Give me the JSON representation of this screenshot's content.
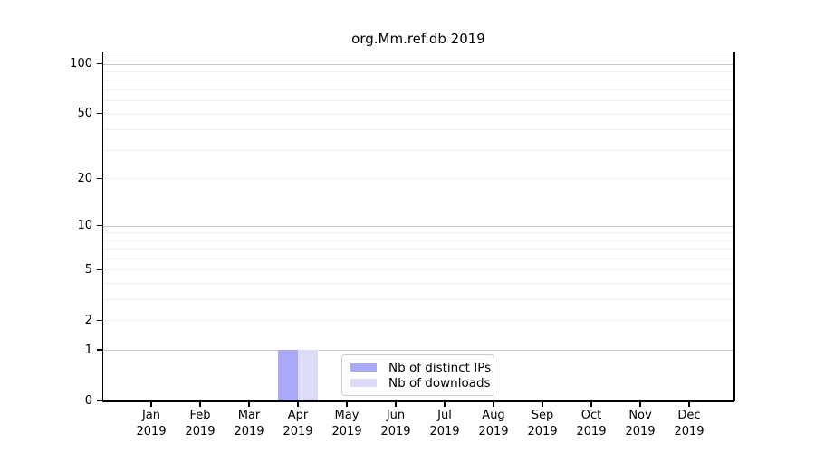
{
  "chart_data": {
    "type": "bar",
    "title": "org.Mm.ref.db 2019",
    "months": [
      "Jan",
      "Feb",
      "Mar",
      "Apr",
      "May",
      "Jun",
      "Jul",
      "Aug",
      "Sep",
      "Oct",
      "Nov",
      "Dec"
    ],
    "year": "2019",
    "series": [
      {
        "name": "Nb of distinct IPs",
        "color": "#a9a9f7",
        "values": [
          0,
          0,
          0,
          1,
          0,
          0,
          0,
          0,
          0,
          0,
          0,
          0
        ]
      },
      {
        "name": "Nb of downloads",
        "color": "#dcdcf9",
        "values": [
          0,
          0,
          0,
          1,
          0,
          0,
          0,
          0,
          0,
          0,
          0,
          0
        ]
      }
    ],
    "xlabel": "",
    "ylabel": "",
    "y_scale": "log1p",
    "ylim": [
      0,
      117
    ],
    "y_ticks": [
      0,
      1,
      2,
      5,
      10,
      20,
      50,
      100
    ],
    "y_minor_gridlines": [
      3,
      4,
      6,
      7,
      8,
      9,
      30,
      40,
      60,
      70,
      80,
      90
    ],
    "grid": true,
    "legend_position": "lower center-right inside plot",
    "colors": {
      "axis": "#000000",
      "grid_major_decade": "#c9c9c9",
      "grid_minor": "#efefef",
      "legend_border": "#cccccc",
      "background": "#ffffff"
    }
  }
}
